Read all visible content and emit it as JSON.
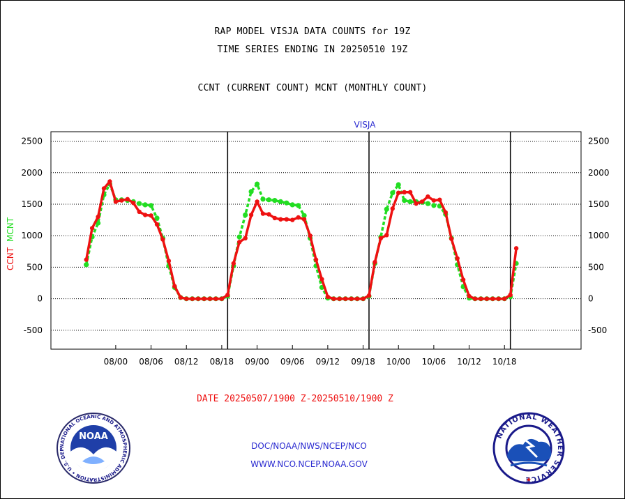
{
  "header": {
    "line1": "RAP MODEL VISJA DATA COUNTS for 19Z",
    "line2": "TIME SERIES ENDING IN 20250510 19Z",
    "line3": "CCNT (CURRENT COUNT) MCNT (MONTHLY COUNT)"
  },
  "colors": {
    "ccnt": "#ee1111",
    "mcnt": "#22dd22",
    "grid": "#000000",
    "link": "#2a2ad0"
  },
  "chart_data": {
    "type": "line",
    "title": "VISJA",
    "ylabel_parts": [
      "CCNT",
      "MCNT"
    ],
    "ylim": [
      -800,
      2650
    ],
    "yticks": [
      -500,
      0,
      500,
      1000,
      1500,
      2000,
      2500
    ],
    "xlim": [
      -6,
      84
    ],
    "x_unit": "hours from 20250507/1900 Z",
    "xticks": [
      {
        "x": 5,
        "label": "08/00"
      },
      {
        "x": 11,
        "label": "08/06"
      },
      {
        "x": 17,
        "label": "08/12"
      },
      {
        "x": 23,
        "label": "08/18"
      },
      {
        "x": 29,
        "label": "09/00"
      },
      {
        "x": 35,
        "label": "09/06"
      },
      {
        "x": 41,
        "label": "09/12"
      },
      {
        "x": 47,
        "label": "09/18"
      },
      {
        "x": 53,
        "label": "10/00"
      },
      {
        "x": 59,
        "label": "10/06"
      },
      {
        "x": 65,
        "label": "10/12"
      },
      {
        "x": 71,
        "label": "10/18"
      }
    ],
    "day_lines": [
      24,
      48,
      72
    ],
    "grid": true,
    "series": [
      {
        "name": "CCNT",
        "color": "#ee1111",
        "values": [
          620,
          1120,
          1300,
          1750,
          1860,
          1540,
          1560,
          1580,
          1520,
          1380,
          1330,
          1320,
          1180,
          940,
          600,
          200,
          20,
          0,
          0,
          0,
          0,
          0,
          0,
          0,
          60,
          560,
          900,
          960,
          1330,
          1540,
          1350,
          1340,
          1280,
          1260,
          1260,
          1250,
          1290,
          1260,
          1000,
          620,
          310,
          30,
          0,
          0,
          0,
          0,
          0,
          0,
          50,
          580,
          960,
          1010,
          1430,
          1680,
          1690,
          1690,
          1510,
          1540,
          1620,
          1560,
          1570,
          1370,
          950,
          640,
          300,
          40,
          0,
          0,
          0,
          0,
          0,
          0,
          60,
          800
        ]
      },
      {
        "name": "MCNT",
        "color": "#22dd22",
        "values": [
          540,
          980,
          1200,
          1650,
          1820,
          1570,
          1570,
          1560,
          1540,
          1510,
          1490,
          1480,
          1280,
          960,
          520,
          180,
          20,
          0,
          0,
          0,
          0,
          0,
          0,
          0,
          40,
          520,
          980,
          1330,
          1700,
          1820,
          1580,
          1570,
          1560,
          1540,
          1520,
          1490,
          1480,
          1320,
          960,
          520,
          180,
          10,
          0,
          0,
          0,
          0,
          0,
          0,
          40,
          560,
          980,
          1420,
          1680,
          1810,
          1560,
          1540,
          1540,
          1530,
          1510,
          1480,
          1470,
          1340,
          960,
          540,
          190,
          10,
          0,
          0,
          0,
          0,
          0,
          0,
          30,
          560
        ]
      }
    ]
  },
  "footer": {
    "date_range": "DATE 20250507/1900 Z-20250510/1900 Z",
    "link1": "DOC/NOAA/NWS/NCEP/NCO",
    "link2": "WWW.NCO.NCEP.NOAA.GOV",
    "noaa_logo_text": "NOAA",
    "noaa_ring_text": "NATIONAL OCEANIC AND ATMOSPHERIC ADMINISTRATION • U.S. DEPARTMENT OF COMMERCE •",
    "nws_ring_text": "NATIONAL WEATHER SERVICE"
  }
}
